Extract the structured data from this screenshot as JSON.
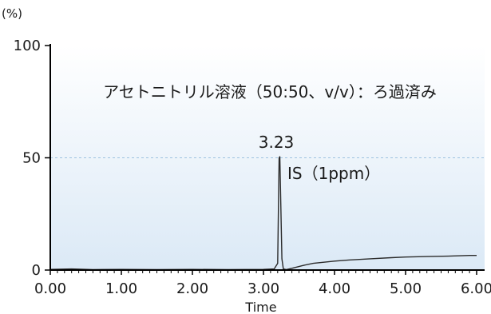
{
  "chart_data": {
    "type": "line",
    "title": "アセトニトリル溶液（50:50、v/v）：ろ過済み",
    "xlabel": "Time",
    "ylabel": "(%)",
    "xlim": [
      0,
      6.0
    ],
    "ylim": [
      0,
      100
    ],
    "x_ticks": [
      "0.00",
      "1.00",
      "2.00",
      "3.00",
      "4.00",
      "5.00",
      "6.00"
    ],
    "y_ticks": [
      "0",
      "50",
      "100"
    ],
    "grid": "dashed line at 50",
    "colors": {
      "trace": "#2b2b2b",
      "background_top": "#ffffff",
      "background_bottom": "#dbe9f6",
      "gridline": "#9ec3e0"
    },
    "annotations": {
      "peak_label": "3.23",
      "peak_name": "IS（1ppm）"
    },
    "series": [
      {
        "x": [
          0.0,
          0.3,
          0.6,
          1.0,
          1.5,
          2.0,
          2.5,
          3.0,
          3.15,
          3.2,
          3.22,
          3.23,
          3.24,
          3.26,
          3.28,
          3.32,
          3.4,
          3.55,
          3.7,
          3.85,
          4.0,
          4.2,
          4.5,
          4.8,
          5.0,
          5.3,
          5.6,
          5.9,
          6.0
        ],
        "values": [
          0.3,
          0.5,
          0.2,
          0.3,
          0.2,
          0.3,
          0.2,
          0.3,
          0.5,
          3.0,
          50.0,
          50.5,
          35.0,
          5.0,
          0.5,
          0.2,
          0.8,
          2.0,
          3.0,
          3.5,
          4.0,
          4.5,
          5.0,
          5.5,
          5.8,
          6.0,
          6.2,
          6.5,
          6.5
        ]
      }
    ]
  }
}
